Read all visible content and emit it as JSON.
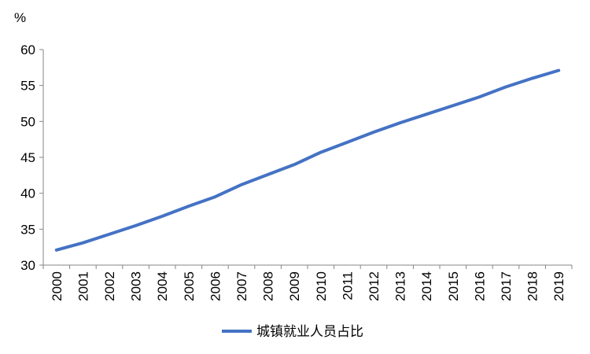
{
  "chart_data": {
    "type": "line",
    "ylabel": "%",
    "categories": [
      "2000",
      "2001",
      "2002",
      "2003",
      "2004",
      "2005",
      "2006",
      "2007",
      "2008",
      "2009",
      "2010",
      "2011",
      "2012",
      "2013",
      "2014",
      "2015",
      "2016",
      "2017",
      "2018",
      "2019"
    ],
    "series": [
      {
        "name": "城镇就业人员占比",
        "color": "#4472c4",
        "values": [
          32.1,
          33.1,
          34.3,
          35.5,
          36.8,
          38.2,
          39.5,
          41.2,
          42.6,
          44.0,
          45.7,
          47.1,
          48.5,
          49.8,
          51.0,
          52.2,
          53.4,
          54.8,
          56.0,
          57.1
        ]
      }
    ],
    "ylim": [
      30,
      60
    ],
    "yticks": [
      30,
      35,
      40,
      45,
      50,
      55,
      60
    ],
    "grid": false,
    "legend": "bottom"
  }
}
